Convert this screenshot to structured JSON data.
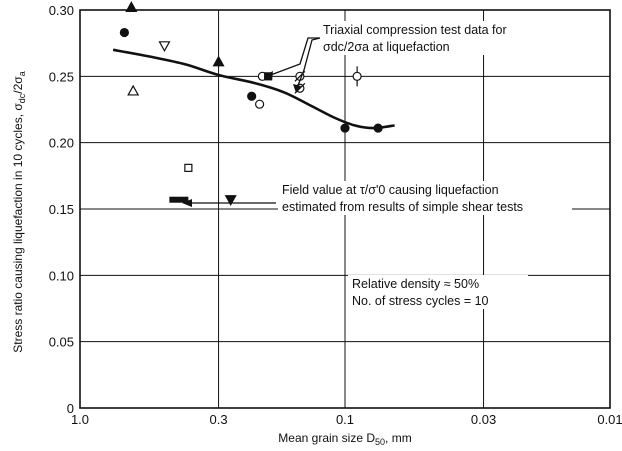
{
  "chart_data": {
    "type": "scatter",
    "xlabel": "Mean grain size D50, mm",
    "ylabel": "Stress ratio causing liquefaction in 10 cycles, σdc/2σa",
    "x_scale": "log",
    "x_reversed": true,
    "xlim": [
      1.0,
      0.01
    ],
    "ylim": [
      0,
      0.3
    ],
    "grid": true,
    "x_ticks": [
      {
        "value": 1.0,
        "label": "1.0"
      },
      {
        "value": 0.3,
        "label": "0.3"
      },
      {
        "value": 0.1,
        "label": "0.1"
      },
      {
        "value": 0.03,
        "label": "0.03"
      },
      {
        "value": 0.01,
        "label": "0.01"
      }
    ],
    "y_ticks": [
      {
        "value": 0,
        "label": "0"
      },
      {
        "value": 0.05,
        "label": "0.05"
      },
      {
        "value": 0.1,
        "label": "0.10"
      },
      {
        "value": 0.15,
        "label": "0.15"
      },
      {
        "value": 0.2,
        "label": "0.20"
      },
      {
        "value": 0.25,
        "label": "0.25"
      },
      {
        "value": 0.3,
        "label": "0.30"
      }
    ],
    "series": [
      {
        "marker": "filled-circle",
        "points": [
          [
            0.68,
            0.283
          ],
          [
            0.225,
            0.235
          ],
          [
            0.1,
            0.211
          ],
          [
            0.075,
            0.211
          ]
        ]
      },
      {
        "marker": "filled-triangle-up",
        "points": [
          [
            0.64,
            0.302
          ],
          [
            0.3,
            0.261
          ]
        ]
      },
      {
        "marker": "open-triangle-up",
        "points": [
          [
            0.63,
            0.239
          ]
        ]
      },
      {
        "marker": "open-triangle-down",
        "points": [
          [
            0.48,
            0.273
          ]
        ]
      },
      {
        "marker": "open-square",
        "points": [
          [
            0.39,
            0.181
          ]
        ]
      },
      {
        "marker": "open-circle",
        "points": [
          [
            0.205,
            0.25
          ],
          [
            0.21,
            0.229
          ]
        ]
      },
      {
        "marker": "filled-square",
        "points": [
          [
            0.195,
            0.25
          ]
        ]
      },
      {
        "marker": "filled-triangle-down",
        "points": [
          [
            0.27,
            0.157
          ]
        ]
      },
      {
        "marker": "slashed-circle",
        "points": [
          [
            0.148,
            0.25
          ],
          [
            0.148,
            0.241
          ]
        ]
      },
      {
        "marker": "open-circle-error-bar",
        "points": [
          [
            0.09,
            0.25
          ]
        ]
      }
    ],
    "curve": {
      "points": [
        [
          0.75,
          0.27
        ],
        [
          0.55,
          0.265
        ],
        [
          0.4,
          0.259
        ],
        [
          0.3,
          0.251
        ],
        [
          0.22,
          0.245
        ],
        [
          0.17,
          0.238
        ],
        [
          0.135,
          0.228
        ],
        [
          0.11,
          0.219
        ],
        [
          0.092,
          0.213
        ],
        [
          0.078,
          0.211
        ],
        [
          0.065,
          0.213
        ]
      ]
    },
    "field_value": {
      "x_range": [
        0.46,
        0.39
      ],
      "y": 0.157
    },
    "annotations": [
      {
        "lines": [
          "Triaxial compression test data for",
          "σdc/2σa at liquefaction"
        ]
      },
      {
        "lines": [
          "Field value at τ/σ'0 causing liquefaction",
          "estimated from results of simple shear tests"
        ]
      },
      {
        "lines": [
          "Relative density ≈ 50%",
          "No. of stress cycles = 10"
        ]
      }
    ]
  }
}
